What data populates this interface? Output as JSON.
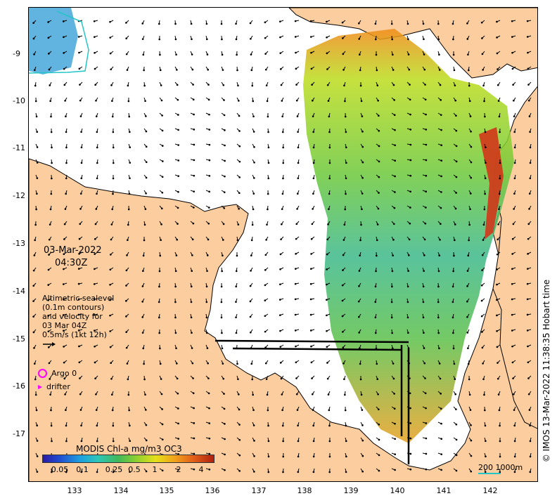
{
  "map": {
    "date": "03-Mar-2022",
    "time": "04:30Z",
    "legend_lines": [
      "Altimetric sealevel",
      "(0.1m contours)",
      "and velocity for",
      "03 Mar 04Z",
      "0.5m/s (1kt 12h)"
    ],
    "argo_label": "Argo 0",
    "drifter_label": "drifter",
    "colorbar_title": "MODIS Chl-a mg/m3 OC3",
    "colorbar_ticks": [
      "0.05",
      "0.1",
      "0.25",
      "0.5",
      "1",
      "2",
      "4"
    ],
    "scale_label": "200  1000m",
    "copyright": "© IMOS 13-Mar-2022 11:38:35 Hobart time",
    "x_ticks": [
      "133",
      "134",
      "135",
      "136",
      "137",
      "138",
      "139",
      "140",
      "141",
      "142"
    ],
    "y_ticks": [
      "-9",
      "-10",
      "-11",
      "-12",
      "-13",
      "-14",
      "-15",
      "-16",
      "-17"
    ],
    "colors": {
      "land": "#fccd9e",
      "coast": "#000000",
      "water": "#ffffff",
      "arrow": "#000000",
      "marker": "#ff00ff",
      "scale": "#23c6c6"
    }
  }
}
